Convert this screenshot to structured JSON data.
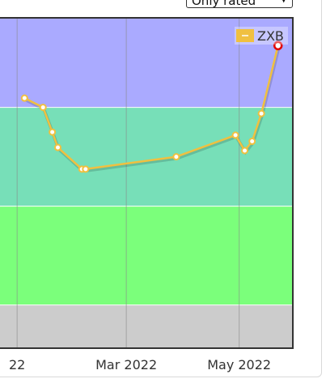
{
  "controls": {
    "filter_select": {
      "value": "Only rated"
    }
  },
  "chart_data": {
    "type": "line",
    "x_axis": {
      "type": "date",
      "range": [
        "2021-12-21",
        "2022-05-30"
      ],
      "ticks": [
        {
          "date": "2022-01-01",
          "label": "22"
        },
        {
          "date": "2022-03-01",
          "label": "Mar 2022"
        },
        {
          "date": "2022-05-01",
          "label": "May 2022"
        }
      ]
    },
    "y_axis": {
      "range": [
        0,
        100
      ],
      "visible_labels": false
    },
    "bands": [
      {
        "from": 0,
        "to": 14,
        "color": "#cccccc"
      },
      {
        "from": 14,
        "to": 46,
        "color": "#7bff7b"
      },
      {
        "from": 46,
        "to": 78,
        "color": "#77dfb8"
      },
      {
        "from": 78,
        "to": 107,
        "color": "#aaaaff"
      }
    ],
    "series": [
      {
        "name": "ZXB",
        "color": "#f0c040",
        "points": [
          {
            "x": "2022-01-05",
            "y": 81
          },
          {
            "x": "2022-01-15",
            "y": 78
          },
          {
            "x": "2022-01-20",
            "y": 70
          },
          {
            "x": "2022-01-23",
            "y": 65
          },
          {
            "x": "2022-02-05",
            "y": 58
          },
          {
            "x": "2022-02-07",
            "y": 58
          },
          {
            "x": "2022-03-28",
            "y": 62
          },
          {
            "x": "2022-04-29",
            "y": 69
          },
          {
            "x": "2022-05-04",
            "y": 64
          },
          {
            "x": "2022-05-08",
            "y": 67
          },
          {
            "x": "2022-05-13",
            "y": 76
          },
          {
            "x": "2022-05-22",
            "y": 98,
            "highlight": true
          }
        ]
      }
    ],
    "legend": {
      "position": "top-right"
    },
    "grid": {
      "vertical": true,
      "horizontal": false
    }
  }
}
